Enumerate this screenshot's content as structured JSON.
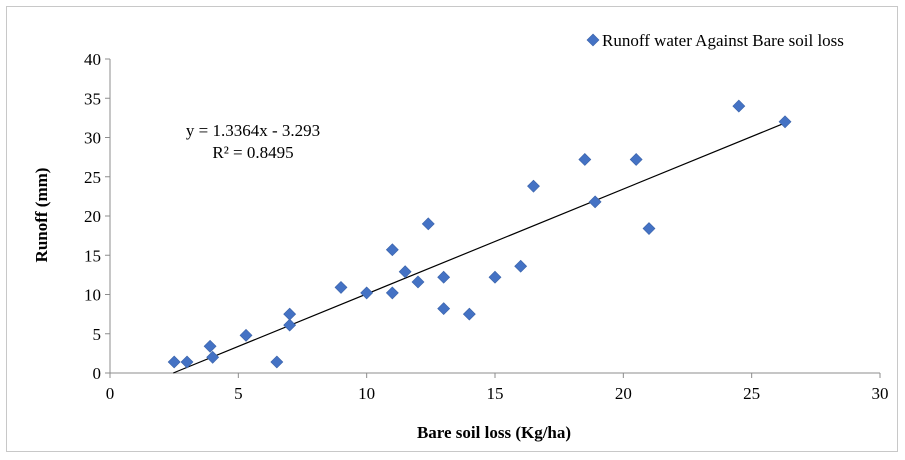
{
  "chart_data": {
    "type": "scatter",
    "xlabel": "Bare soil loss (Kg/ha)",
    "ylabel": "Runoff (mm)",
    "xlim": [
      0,
      30
    ],
    "ylim": [
      0,
      40
    ],
    "xticks": [
      0,
      5,
      10,
      15,
      20,
      25,
      30
    ],
    "yticks": [
      0,
      5,
      10,
      15,
      20,
      25,
      30,
      35,
      40
    ],
    "grid": false,
    "legend_position": "top-right",
    "series": [
      {
        "name": "Runoff water Against Bare soil loss",
        "color": "#4472C4",
        "marker": "diamond",
        "points": [
          [
            2.5,
            1.4
          ],
          [
            3.0,
            1.4
          ],
          [
            3.9,
            3.4
          ],
          [
            4.0,
            2.0
          ],
          [
            5.3,
            4.8
          ],
          [
            6.5,
            1.4
          ],
          [
            7.0,
            7.5
          ],
          [
            7.0,
            6.1
          ],
          [
            9.0,
            10.9
          ],
          [
            10.0,
            10.2
          ],
          [
            11.0,
            15.7
          ],
          [
            11.0,
            10.2
          ],
          [
            11.5,
            12.9
          ],
          [
            12.0,
            11.6
          ],
          [
            12.4,
            19.0
          ],
          [
            13.0,
            12.2
          ],
          [
            13.0,
            8.2
          ],
          [
            14.0,
            7.5
          ],
          [
            15.0,
            12.2
          ],
          [
            16.0,
            13.6
          ],
          [
            16.5,
            23.8
          ],
          [
            18.5,
            27.2
          ],
          [
            18.9,
            21.8
          ],
          [
            20.5,
            27.2
          ],
          [
            21.0,
            18.4
          ],
          [
            24.5,
            34.0
          ],
          [
            26.3,
            32.0
          ]
        ]
      }
    ],
    "trendline": {
      "type": "linear",
      "slope": 1.3364,
      "intercept": -3.293,
      "x_range": [
        2.464,
        26.3
      ],
      "color": "#000000",
      "equation_label": "y = 1.3364x - 3.293",
      "r2_label": "R² = 0.8495"
    }
  }
}
